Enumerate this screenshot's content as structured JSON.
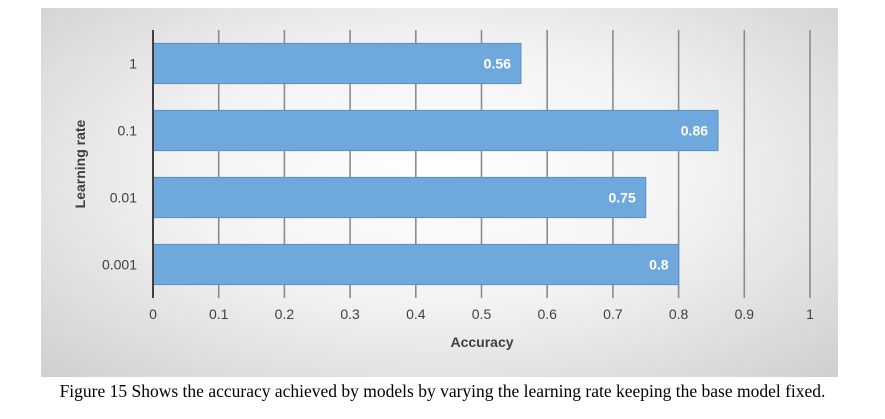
{
  "chart_data": {
    "type": "bar",
    "orientation": "horizontal",
    "categories": [
      "1",
      "0.1",
      "0.01",
      "0.001"
    ],
    "values": [
      0.56,
      0.86,
      0.75,
      0.8
    ],
    "data_labels": [
      "0.56",
      "0.86",
      "0.75",
      "0.8"
    ],
    "xlabel": "Accuracy",
    "ylabel": "Learning rate",
    "xlim": [
      0,
      1
    ],
    "xticks": [
      "0",
      "0.1",
      "0.2",
      "0.3",
      "0.4",
      "0.5",
      "0.6",
      "0.7",
      "0.8",
      "0.9",
      "1"
    ],
    "grid": "vertical",
    "legend": "none",
    "bar_color": "#6fa8dc",
    "bar_edge_color": "#5b8fc4"
  },
  "caption": "Figure 15 Shows the accuracy achieved by models by varying the learning rate keeping the base model fixed."
}
